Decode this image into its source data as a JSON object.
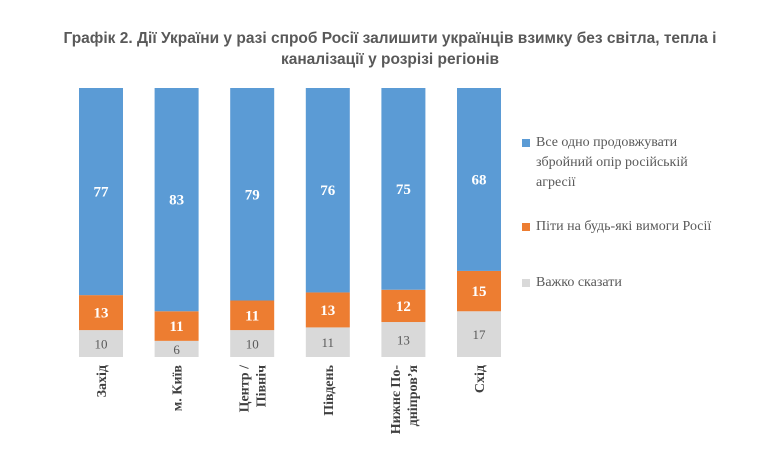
{
  "title_line1": "Графік 2. Дії України у разі спроб Росії залишити українців взимку без світла, тепла і",
  "title_line2": "каналізації у розрізі регіонів",
  "colors": {
    "fight": "#5b9bd5",
    "surrender": "#ed7d31",
    "hard": "#d9d9d9"
  },
  "chart_data": {
    "type": "bar",
    "stacked": true,
    "categories": [
      "Захід",
      "м. Київ",
      "Центр / Північ",
      "Південь",
      "Нижнє По-дніпров’я",
      "Схід"
    ],
    "category_lines": [
      [
        "Захід"
      ],
      [
        "м. Київ"
      ],
      [
        "Центр /",
        "Північ"
      ],
      [
        "Південь"
      ],
      [
        "Нижнє По-",
        "дніпров’я"
      ],
      [
        "Схід"
      ]
    ],
    "series": [
      {
        "name": "Важко сказати",
        "key": "hard",
        "values": [
          10,
          6,
          10,
          11,
          13,
          17
        ]
      },
      {
        "name": "Піти на будь-які вимоги Росії",
        "key": "surrender",
        "values": [
          13,
          11,
          11,
          13,
          12,
          15
        ]
      },
      {
        "name": "Все одно продовжувати збройний опір російській агресії",
        "key": "fight",
        "values": [
          77,
          83,
          79,
          76,
          75,
          68
        ]
      }
    ],
    "ylim": [
      0,
      100
    ],
    "legend_position": "right",
    "grid": false
  },
  "legend": [
    {
      "key": "fight",
      "lines": [
        "Все одно продовжувати",
        "збройний опір російській",
        "агресії"
      ]
    },
    {
      "key": "surrender",
      "lines": [
        "Піти на будь-які вимоги Росії"
      ]
    },
    {
      "key": "hard",
      "lines": [
        "Важко сказати"
      ]
    }
  ]
}
